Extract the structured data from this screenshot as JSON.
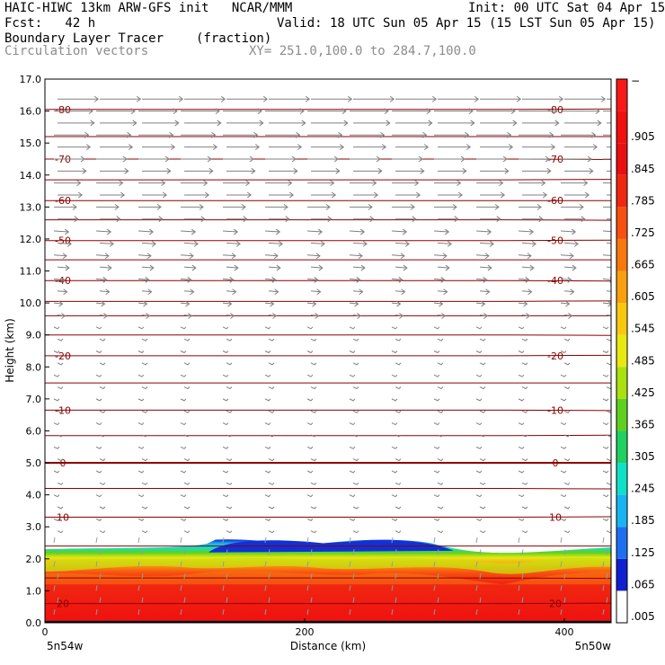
{
  "header": {
    "title_left": "HAIC-HIWC 13km ARW-GFS init   NCAR/MMM",
    "init": "Init: 00 UTC Sat 04 Apr 15",
    "fcst": "Fcst:   42 h",
    "valid": "Valid: 18 UTC Sun 05 Apr 15 (15 LST Sun 05 Apr 15)",
    "field": "Boundary Layer Tracer",
    "units": "(fraction)",
    "vectors": "Circulation vectors",
    "xy": "XY= 251.0,100.0 to 284.7,100.0"
  },
  "axes": {
    "ylabel": "Height (km)",
    "xlabel": "Distance (km)",
    "left_loc": "5n54w",
    "right_loc": "5n50w"
  },
  "colors": {
    "contour": "#8b0000",
    "vector": "#808080"
  },
  "chart_data": {
    "type": "heatmap",
    "x_ticks": [
      "0",
      "200",
      "400"
    ],
    "x_tick_values": [
      0,
      200,
      400
    ],
    "xlim": [
      0,
      436
    ],
    "y_ticks": [
      "0.0",
      "1.0",
      "2.0",
      "3.0",
      "4.0",
      "5.0",
      "6.0",
      "7.0",
      "8.0",
      "9.0",
      "10.0",
      "11.0",
      "12.0",
      "13.0",
      "14.0",
      "15.0",
      "16.0",
      "17.0"
    ],
    "ylim": [
      0,
      17
    ],
    "colorbar_labels": [
      ".005",
      ".065",
      ".125",
      ".185",
      ".245",
      ".305",
      ".365",
      ".425",
      ".485",
      ".545",
      ".605",
      ".665",
      ".725",
      ".785",
      ".845",
      ".905",
      "1"
    ],
    "colorbar_colors": [
      "#ffffff",
      "#1020d0",
      "#1e6ff0",
      "#18b4f0",
      "#10e0c8",
      "#20d060",
      "#60d020",
      "#a8e010",
      "#e8e810",
      "#f8c810",
      "#f8a010",
      "#f87810",
      "#f85010",
      "#f02810",
      "#e81010",
      "#f01010",
      "#f81818"
    ],
    "temperature_contours": [
      {
        "label": "-80",
        "height_km": 16.05
      },
      {
        "label": "-70",
        "height_km": 14.5
      },
      {
        "label": "-60",
        "height_km": 13.2
      },
      {
        "label": "-50",
        "height_km": 11.95
      },
      {
        "label": "-40",
        "height_km": 10.7
      },
      {
        "label": "-20",
        "height_km": 8.35
      },
      {
        "label": "-10",
        "height_km": 6.65
      },
      {
        "label": "0",
        "height_km": 5.0
      },
      {
        "label": "10",
        "height_km": 3.3
      },
      {
        "label": "20",
        "height_km": 0.6
      }
    ],
    "tracer_top_km": 2.3,
    "tracer_peak_km": 2.6
  }
}
